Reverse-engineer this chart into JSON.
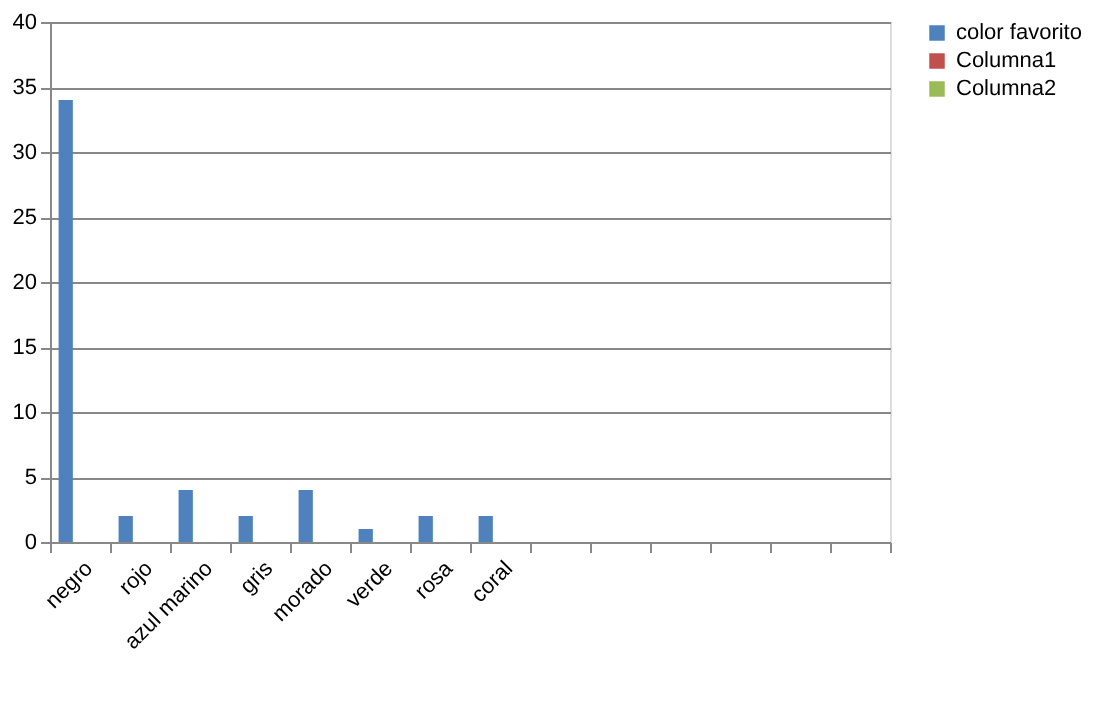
{
  "chart_data": {
    "type": "bar",
    "categories": [
      "negro",
      "rojo",
      "azul marino",
      "gris",
      "morado",
      "verde",
      "rosa",
      "coral",
      null,
      null,
      null,
      null,
      null,
      null
    ],
    "series": [
      {
        "name": "color favorito",
        "color": "#4f81bd",
        "values": [
          34,
          2,
          4,
          2,
          4,
          1,
          2,
          2,
          null,
          null,
          null,
          null,
          null,
          null
        ]
      },
      {
        "name": "Columna1",
        "color": "#c0504d",
        "values": [
          null,
          null,
          null,
          null,
          null,
          null,
          null,
          null,
          null,
          null,
          null,
          null,
          null,
          null
        ]
      },
      {
        "name": "Columna2",
        "color": "#9bbb59",
        "values": [
          null,
          null,
          null,
          null,
          null,
          null,
          null,
          null,
          null,
          null,
          null,
          null,
          null,
          null
        ]
      }
    ],
    "ylim": [
      0,
      40
    ],
    "yticks": [
      0,
      5,
      10,
      15,
      20,
      25,
      30,
      35,
      40
    ],
    "grid": "y",
    "legend": "right"
  }
}
